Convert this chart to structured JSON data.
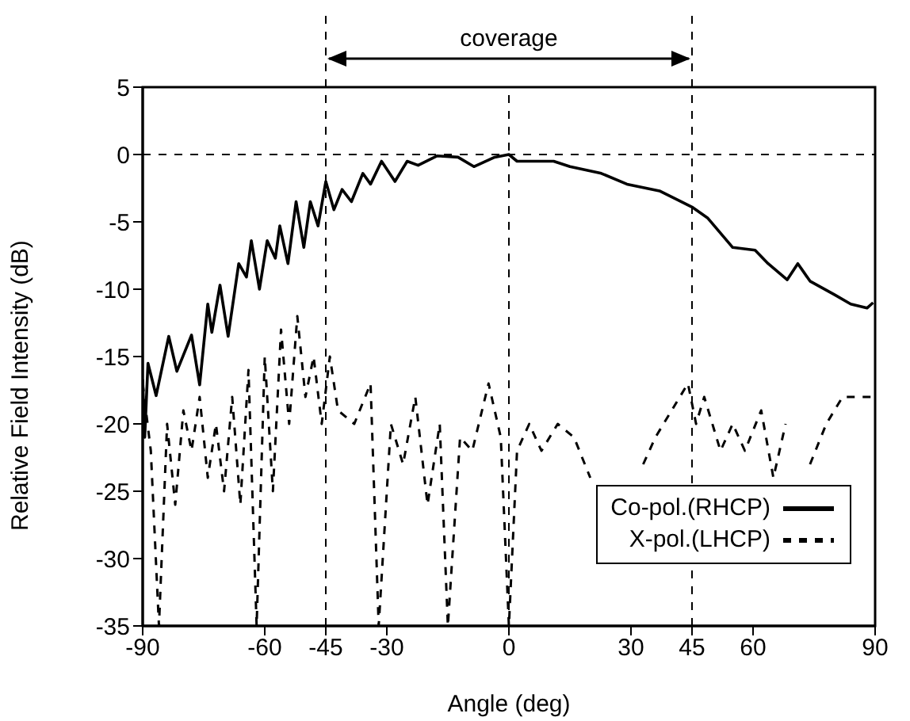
{
  "chart_data": {
    "type": "line",
    "xlabel": "Angle (deg)",
    "ylabel": "Relative Field Intensity (dB)",
    "xlim": [
      -90,
      90
    ],
    "xticks": [
      -90,
      -60,
      -45,
      -30,
      0,
      30,
      45,
      60,
      90
    ],
    "ylim": [
      -35,
      5
    ],
    "yticks": [
      -35,
      -30,
      -25,
      -20,
      -15,
      -10,
      -5,
      0,
      5
    ],
    "grid": false,
    "legend": "bottom right",
    "marker": "none",
    "annotations": [
      "coverage"
    ],
    "ref_lines": [
      {
        "axis": "x",
        "value": -45,
        "color": "#000000",
        "line_style": "dashed"
      },
      {
        "axis": "x",
        "value": 0,
        "color": "#000000",
        "line_style": "dashed"
      },
      {
        "axis": "x",
        "value": 45,
        "color": "#000000",
        "line_style": "dashed"
      },
      {
        "axis": "y",
        "value": 0,
        "color": "#000000",
        "line_style": "dashed"
      }
    ],
    "series": [
      {
        "name": "Co-pol.(RHCP)",
        "color": "#000000",
        "line_style": "solid",
        "x": [
          -90,
          -89.5,
          -88.7,
          -86.7,
          -83.6,
          -81.6,
          -78,
          -76,
          -74,
          -73,
          -71,
          -69,
          -66.4,
          -64.5,
          -63.3,
          -61.3,
          -59.4,
          -57.4,
          -56.3,
          -54.3,
          -52.3,
          -50.4,
          -48.8,
          -46.9,
          -45,
          -43,
          -41,
          -38.7,
          -35.9,
          -34,
          -31.3,
          -28,
          -25,
          -22.3,
          -17.6,
          -12.5,
          -8.6,
          -3.5,
          0,
          2,
          11,
          15,
          22.7,
          29,
          37,
          45,
          48.8,
          55,
          60.5,
          63.7,
          68.4,
          71,
          74,
          80,
          84,
          88,
          89.5
        ],
        "values": [
          -16.7,
          -21,
          -15.5,
          -17.9,
          -13.5,
          -16.1,
          -13.4,
          -17.1,
          -11.1,
          -13.2,
          -9.7,
          -13.5,
          -8.1,
          -9.1,
          -6.4,
          -10,
          -6.4,
          -7.7,
          -5.3,
          -8.1,
          -3.5,
          -6.9,
          -3.5,
          -5.3,
          -2,
          -4.1,
          -2.6,
          -3.5,
          -1.4,
          -2.2,
          -0.5,
          -2,
          -0.5,
          -0.8,
          -0.1,
          -0.2,
          -0.9,
          -0.2,
          0,
          -0.5,
          -0.5,
          -0.9,
          -1.4,
          -2.2,
          -2.7,
          -3.9,
          -4.7,
          -6.9,
          -7.1,
          -8.1,
          -9.3,
          -8.1,
          -9.4,
          -10.4,
          -11.1,
          -11.4,
          -11
        ]
      },
      {
        "name": "X-pol.(LHCP)",
        "color": "#000000",
        "line_style": "dashed",
        "x": [
          -90,
          -88,
          -86,
          -84,
          -82,
          -80,
          -78,
          -76,
          -74,
          -72,
          -70,
          -68,
          -66,
          -64,
          -62,
          -60,
          -58,
          -56,
          -54,
          -52,
          -50,
          -48,
          -46,
          -44,
          -42,
          -38,
          -34,
          -32,
          -29,
          -26,
          -23,
          -20,
          -17,
          -15,
          -12,
          -9,
          -5,
          -2,
          0,
          2,
          5,
          8,
          12,
          16,
          20,
          24,
          27,
          30,
          33,
          36,
          40,
          44,
          46,
          48,
          52,
          55,
          58,
          62,
          65,
          68,
          71,
          74,
          78,
          82,
          86,
          90
        ],
        "values": [
          -17,
          -22,
          -35,
          -20,
          -26,
          -19,
          -22,
          -18,
          -24,
          -20,
          -25,
          -18,
          -26,
          -16,
          -35,
          -15,
          -25,
          -13,
          -20,
          -12,
          -18,
          -15,
          -20,
          -15,
          -19,
          -20,
          -17,
          -35,
          -20,
          -23,
          -18,
          -26,
          -20,
          -35,
          -21,
          -22,
          -17,
          -21,
          -35,
          -22,
          -20,
          -22,
          -20,
          -21,
          -24,
          null,
          null,
          null,
          -23,
          -21,
          -19,
          -17,
          -20,
          -18,
          -22,
          -20,
          -22,
          -19,
          -24,
          -20,
          null,
          -23,
          -20,
          -18,
          -18,
          -18
        ]
      }
    ]
  }
}
